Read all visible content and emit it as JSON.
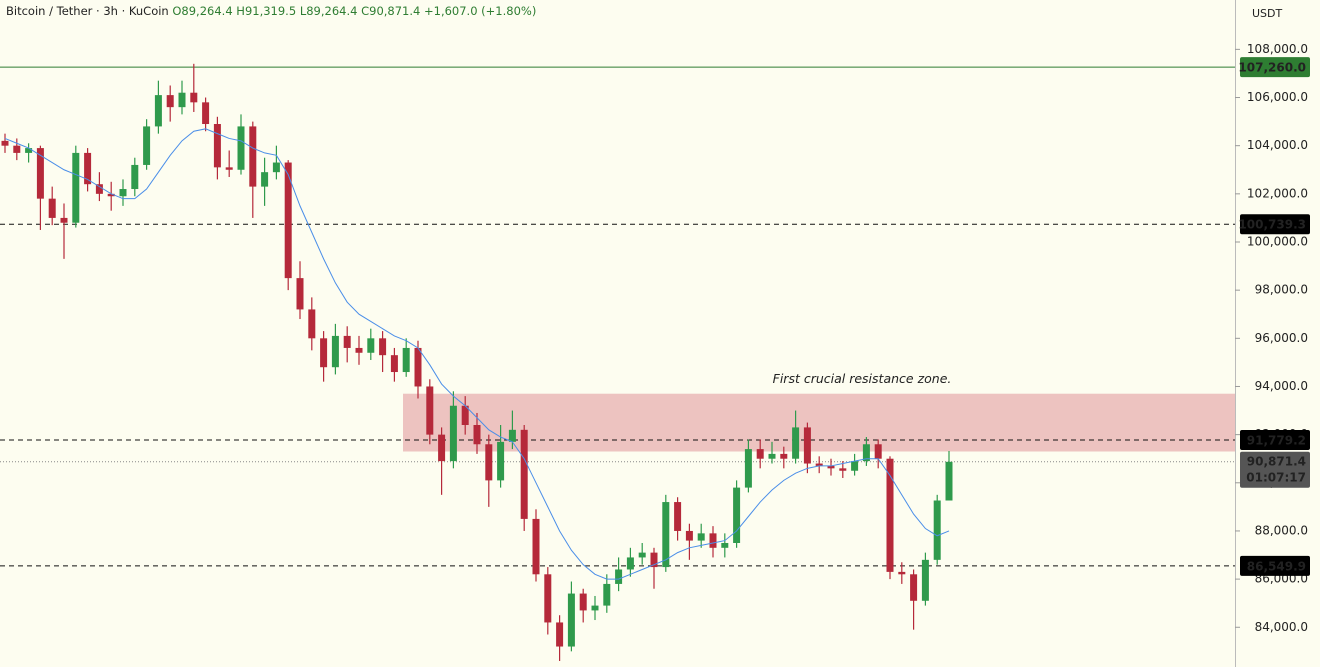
{
  "legend": {
    "symbol": "Bitcoin / Tether · 3h · KuCoin",
    "open": "O89,264.4",
    "high": "H91,319.5",
    "low": "L89,264.4",
    "close": "C90,871.4",
    "change": "+1,607.0 (+1.80%)"
  },
  "chart_data": {
    "type": "candlestick",
    "currency": "USDT",
    "up_color": "#2f9a4c",
    "down_color": "#b5293a",
    "ylim": [
      82350,
      110050
    ],
    "yticks": [
      {
        "value": 84000,
        "label": "84,000.0"
      },
      {
        "value": 86000,
        "label": "86,000.0"
      },
      {
        "value": 88000,
        "label": "88,000.0"
      },
      {
        "value": 90000,
        "label": "90,000.0"
      },
      {
        "value": 92000,
        "label": "92,000.0"
      },
      {
        "value": 94000,
        "label": "94,000.0"
      },
      {
        "value": 96000,
        "label": "96,000.0"
      },
      {
        "value": 98000,
        "label": "98,000.0"
      },
      {
        "value": 100000,
        "label": "100,000.0"
      },
      {
        "value": 102000,
        "label": "102,000.0"
      },
      {
        "value": 104000,
        "label": "104,000.0"
      },
      {
        "value": 106000,
        "label": "106,000.0"
      },
      {
        "value": 108000,
        "label": "108,000.0"
      }
    ],
    "candles": [
      [
        104200,
        104500,
        103700,
        104000
      ],
      [
        104000,
        104300,
        103400,
        103700
      ],
      [
        103700,
        104100,
        103300,
        103900
      ],
      [
        103900,
        104000,
        100500,
        101800
      ],
      [
        101800,
        102300,
        100700,
        101000
      ],
      [
        101000,
        101600,
        99300,
        100800
      ],
      [
        100800,
        104000,
        100600,
        103700
      ],
      [
        103700,
        103900,
        102100,
        102400
      ],
      [
        102400,
        102900,
        101700,
        102000
      ],
      [
        102000,
        102500,
        101300,
        101900
      ],
      [
        101900,
        102600,
        101500,
        102200
      ],
      [
        102200,
        103500,
        101900,
        103200
      ],
      [
        103200,
        105100,
        103000,
        104800
      ],
      [
        104800,
        106700,
        104500,
        106100
      ],
      [
        106100,
        106500,
        105000,
        105600
      ],
      [
        105600,
        106700,
        105300,
        106200
      ],
      [
        106200,
        107400,
        105400,
        105800
      ],
      [
        105800,
        106000,
        104600,
        104900
      ],
      [
        104900,
        105200,
        102600,
        103100
      ],
      [
        103100,
        103800,
        102700,
        103000
      ],
      [
        103000,
        105300,
        102800,
        104800
      ],
      [
        104800,
        105000,
        101000,
        102300
      ],
      [
        102300,
        103500,
        101500,
        102900
      ],
      [
        102900,
        104000,
        102600,
        103300
      ],
      [
        103300,
        103400,
        98000,
        98500
      ],
      [
        98500,
        99200,
        96800,
        97200
      ],
      [
        97200,
        97700,
        95500,
        96000
      ],
      [
        96000,
        96300,
        94200,
        94800
      ],
      [
        94800,
        96600,
        94500,
        96100
      ],
      [
        96100,
        96500,
        95000,
        95600
      ],
      [
        95600,
        96100,
        94900,
        95400
      ],
      [
        95400,
        96400,
        95100,
        96000
      ],
      [
        96000,
        96300,
        94600,
        95300
      ],
      [
        95300,
        95600,
        94200,
        94600
      ],
      [
        94600,
        96000,
        94400,
        95600
      ],
      [
        95600,
        95900,
        93500,
        94000
      ],
      [
        94000,
        94300,
        91600,
        92000
      ],
      [
        92000,
        92300,
        89500,
        90900
      ],
      [
        90900,
        93800,
        90600,
        93200
      ],
      [
        93200,
        93600,
        92000,
        92400
      ],
      [
        92400,
        92900,
        91200,
        91600
      ],
      [
        91600,
        92000,
        89000,
        90100
      ],
      [
        90100,
        92400,
        89800,
        91700
      ],
      [
        91700,
        93000,
        91400,
        92200
      ],
      [
        92200,
        92400,
        88000,
        88500
      ],
      [
        88500,
        88900,
        85900,
        86200
      ],
      [
        86200,
        86500,
        83700,
        84200
      ],
      [
        84200,
        84500,
        82600,
        83200
      ],
      [
        83200,
        85900,
        83000,
        85400
      ],
      [
        85400,
        85600,
        84200,
        84700
      ],
      [
        84700,
        85300,
        84300,
        84900
      ],
      [
        84900,
        86200,
        84600,
        85800
      ],
      [
        85800,
        86900,
        85500,
        86400
      ],
      [
        86400,
        87300,
        86100,
        86900
      ],
      [
        86900,
        87500,
        86600,
        87100
      ],
      [
        87100,
        87300,
        85600,
        86500
      ],
      [
        86500,
        89500,
        86300,
        89200
      ],
      [
        89200,
        89400,
        87600,
        88000
      ],
      [
        88000,
        88300,
        86800,
        87600
      ],
      [
        87600,
        88300,
        87300,
        87900
      ],
      [
        87900,
        88200,
        86900,
        87300
      ],
      [
        87300,
        87900,
        86900,
        87500
      ],
      [
        87500,
        90100,
        87300,
        89800
      ],
      [
        89800,
        91800,
        89600,
        91400
      ],
      [
        91400,
        91800,
        90600,
        91000
      ],
      [
        91000,
        91700,
        90800,
        91200
      ],
      [
        91200,
        91500,
        90600,
        91000
      ],
      [
        91000,
        93000,
        90800,
        92300
      ],
      [
        92300,
        92500,
        90400,
        90800
      ],
      [
        90800,
        91100,
        90400,
        90700
      ],
      [
        90700,
        91000,
        90300,
        90600
      ],
      [
        90600,
        90900,
        90200,
        90500
      ],
      [
        90500,
        91200,
        90300,
        90900
      ],
      [
        90900,
        91900,
        90700,
        91600
      ],
      [
        91600,
        91800,
        90600,
        91000
      ],
      [
        91000,
        91100,
        86000,
        86300
      ],
      [
        86300,
        86700,
        85800,
        86200
      ],
      [
        86200,
        86400,
        83900,
        85100
      ],
      [
        85100,
        87100,
        84900,
        86800
      ],
      [
        86800,
        89500,
        86600,
        89264.4
      ],
      [
        89264.4,
        91319.5,
        89264.4,
        90871.4
      ]
    ],
    "ma": {
      "color": "#4a8ee8",
      "values": [
        104300,
        104100,
        103900,
        103600,
        103300,
        103000,
        102800,
        102600,
        102300,
        102000,
        101800,
        101800,
        102200,
        102900,
        103600,
        104200,
        104600,
        104700,
        104500,
        104300,
        104200,
        103900,
        103700,
        103600,
        102800,
        101500,
        100400,
        99300,
        98300,
        97500,
        97000,
        96700,
        96400,
        96100,
        95900,
        95600,
        94900,
        94100,
        93600,
        93200,
        92700,
        92200,
        91900,
        91700,
        91000,
        90000,
        89000,
        88000,
        87200,
        86600,
        86200,
        86000,
        86000,
        86200,
        86400,
        86600,
        86800,
        87100,
        87300,
        87400,
        87500,
        87600,
        88000,
        88600,
        89200,
        89700,
        90100,
        90400,
        90600,
        90700,
        90700,
        90800,
        90900,
        91000,
        91000,
        90300,
        89500,
        88700,
        88100,
        87800,
        88000
      ]
    },
    "levels": [
      {
        "value": 107260,
        "label": "107,260.0",
        "style": "solid",
        "color": "#2e7d32"
      },
      {
        "value": 100739.3,
        "label": "100,739.3",
        "style": "dashed",
        "color": "#111111"
      },
      {
        "value": 91779.2,
        "label": "91,779.2",
        "style": "dashed",
        "color": "#111111"
      },
      {
        "value": 86549.9,
        "label": "86,549.9",
        "style": "dashed",
        "color": "#111111"
      }
    ],
    "current": {
      "value": 90871.4,
      "label": "90,871.4",
      "countdown": "01:07:17",
      "color": "#555555"
    },
    "zone": {
      "low": 91300,
      "high": 93700,
      "color": "#e8b4b4",
      "annotation": "First crucial resistance zone."
    }
  }
}
